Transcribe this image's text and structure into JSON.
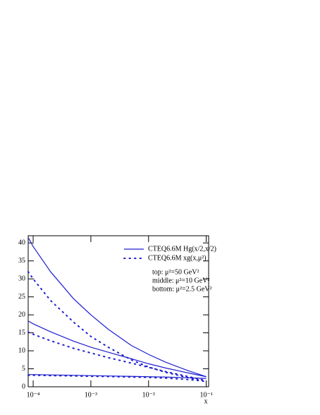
{
  "chart_data": {
    "type": "line",
    "x": [
      8.2e-05,
      0.0001,
      0.0002,
      0.0005,
      0.001,
      0.002,
      0.005,
      0.01,
      0.02,
      0.05,
      0.1
    ],
    "series": [
      {
        "name": "CTEQ6.6M Hg(x/2,x/2)",
        "color": "#1f1fd0",
        "style": "solid",
        "curves": [
          [
            41.5,
            39,
            32,
            24.5,
            20,
            16,
            11.5,
            9,
            6.8,
            4.4,
            2.8
          ],
          [
            18.3,
            17.5,
            15.3,
            12.7,
            11,
            9.6,
            7.8,
            6.4,
            5.2,
            3.8,
            2.8
          ],
          [
            3.4,
            3.4,
            3.3,
            3.2,
            3.1,
            3.0,
            2.9,
            2.8,
            2.7,
            2.5,
            2.3
          ]
        ]
      },
      {
        "name": "CTEQ6.6M xg(x,μ²)",
        "color": "#1f1fd0",
        "style": "dotted",
        "curves": [
          [
            32,
            30,
            24,
            18,
            14,
            11,
            7.5,
            5.5,
            4,
            2.5,
            1.4
          ],
          [
            15.2,
            14.6,
            12.8,
            10.7,
            9.4,
            8.1,
            6.6,
            5.4,
            4.2,
            2.8,
            1.7
          ],
          [
            3.2,
            3.2,
            3.1,
            3.0,
            2.9,
            2.85,
            2.7,
            2.6,
            2.4,
            2.0,
            1.5
          ]
        ]
      }
    ],
    "annotations": [
      "top: μ²=50 GeV²",
      "middle: μ²=10 GeV²",
      "bottom: μ²=2.5 GeV²"
    ],
    "x_label": "x",
    "xscale": "log",
    "xlim": [
      8.2e-05,
      0.11
    ],
    "ylim": [
      0,
      42
    ],
    "xticks": [
      {
        "value": 0.0001,
        "label": "10⁻⁴"
      },
      {
        "value": 0.001,
        "label": "10⁻³"
      },
      {
        "value": 0.01,
        "label": "10⁻²"
      },
      {
        "value": 0.1,
        "label": "10⁻¹"
      }
    ],
    "yticks": [
      0,
      5,
      10,
      15,
      20,
      25,
      30,
      35,
      40
    ]
  }
}
